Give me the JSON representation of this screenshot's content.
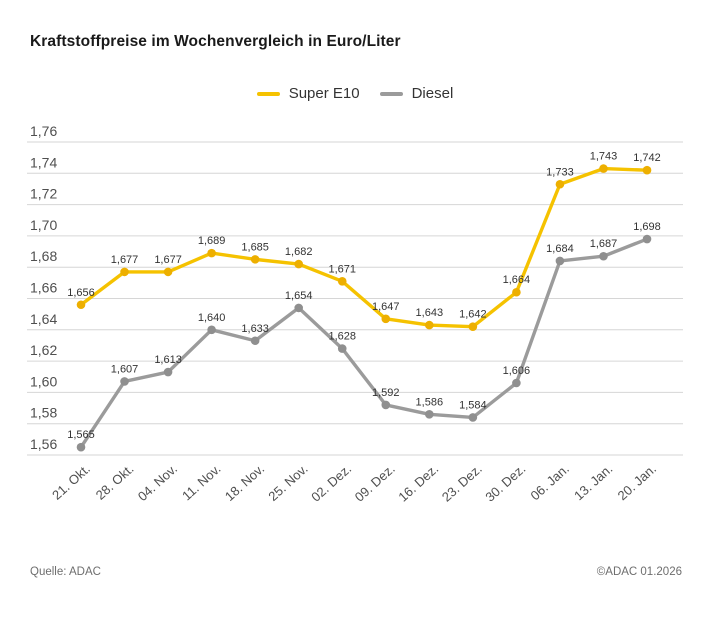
{
  "title": "Kraftstoffpreise im Wochenvergleich in Euro/Liter",
  "footer": {
    "source": "Quelle: ADAC",
    "copyright": "©ADAC 01.2026"
  },
  "colors": {
    "background": "#ffffff",
    "gridline": "#d6d6d6",
    "axis_label": "#4f4f4f",
    "data_label": "#333333",
    "title_text": "#1a1a1a",
    "footer_text": "#6e6e6e"
  },
  "chart_data": {
    "type": "line",
    "title": "Kraftstoffpreise im Wochenvergleich in Euro/Liter",
    "unit": "Euro/Liter",
    "categories": [
      "21. Okt.",
      "28. Okt.",
      "04. Nov.",
      "11. Nov.",
      "18. Nov.",
      "25. Nov.",
      "02. Dez.",
      "09. Dez.",
      "16. Dez.",
      "23. Dez.",
      "30. Dez.",
      "06. Jan.",
      "13. Jan.",
      "20. Jan."
    ],
    "series": [
      {
        "name": "Super E10",
        "color": "#f5c200",
        "dot_color": "#edaf00",
        "values": [
          1.656,
          1.677,
          1.677,
          1.689,
          1.685,
          1.682,
          1.671,
          1.647,
          1.643,
          1.642,
          1.664,
          1.733,
          1.743,
          1.742
        ]
      },
      {
        "name": "Diesel",
        "color": "#9b9b9b",
        "dot_color": "#8f8f8f",
        "values": [
          1.565,
          1.607,
          1.613,
          1.64,
          1.633,
          1.654,
          1.628,
          1.592,
          1.586,
          1.584,
          1.606,
          1.684,
          1.687,
          1.698
        ]
      }
    ],
    "ylim": [
      1.56,
      1.76
    ],
    "ytick_step": 0.02,
    "ytick_labels": [
      "1,56",
      "1,58",
      "1,60",
      "1,62",
      "1,64",
      "1,66",
      "1,68",
      "1,70",
      "1,72",
      "1,74",
      "1,76"
    ],
    "grid": true,
    "legend_position": "top-center",
    "decimal_separator": ",",
    "data_labels": true
  }
}
